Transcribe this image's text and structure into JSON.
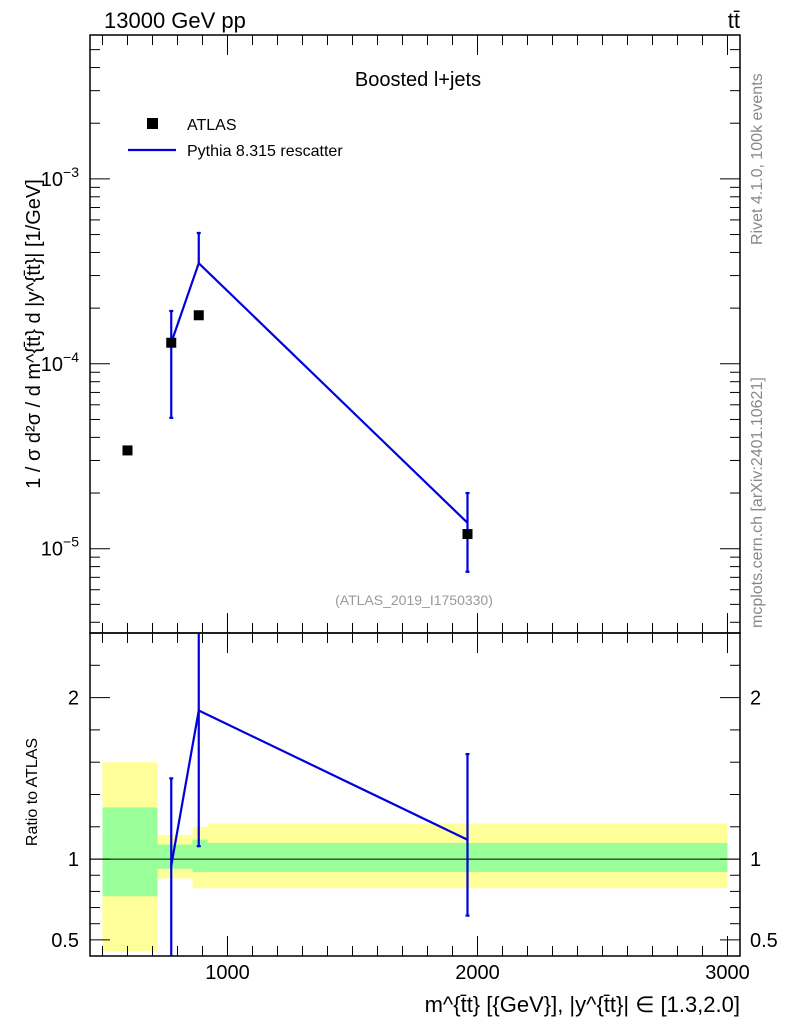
{
  "header": {
    "left": "13000 GeV pp",
    "right": "tt̄"
  },
  "side": {
    "top": "Rivet 4.1.0,  100k events",
    "bottom": "mcplots.cern.ch [arXiv:2401.10621]"
  },
  "colors": {
    "data": "#000000",
    "mc": "#0000dd",
    "band_inner": "#99ff99",
    "band_outer": "#ffff99"
  },
  "chart_data": [
    {
      "type": "scatter",
      "title": "Boosted l+jets",
      "analysis": "(ATLAS_2019_I1750330)",
      "ylabel": "1 / σ d²σ / d m^{t̄t} d |y^{t̄t}| [1/GeV]",
      "yscale": "log",
      "xlim": [
        450,
        3050
      ],
      "ylim": [
        3.5e-06,
        0.006
      ],
      "yticks": [
        {
          "value": 0.001,
          "mant": "10",
          "exp": "−3"
        },
        {
          "value": 0.0001,
          "mant": "10",
          "exp": "−4"
        },
        {
          "value": 1e-05,
          "mant": "10",
          "exp": "−5"
        }
      ],
      "legend": [
        "ATLAS",
        "Pythia 8.315 rescatter"
      ],
      "series": [
        {
          "name": "ATLAS",
          "kind": "points",
          "x": [
            600,
            775,
            885,
            1960
          ],
          "y": [
            3.4e-05,
            0.00013,
            0.000183,
            1.2e-05
          ]
        },
        {
          "name": "Pythia 8.315 rescatter",
          "kind": "line",
          "x": [
            775,
            885,
            1960
          ],
          "y": [
            0.00013,
            0.00035,
            1.38e-05
          ],
          "yerr_low": [
            5.1e-05,
            null,
            7.5e-06
          ],
          "yerr_high": [
            0.000193,
            0.00051,
            2e-05
          ]
        }
      ]
    },
    {
      "type": "line",
      "ylabel": "Ratio to ATLAS",
      "xlabel": "m^{t̄t} [{GeV}], |y^{t̄t}| ∈ [1.3,2.0]",
      "xlim": [
        450,
        3050
      ],
      "ylim": [
        0.4,
        2.4
      ],
      "xticks": [
        1000,
        2000,
        3000
      ],
      "yticks": [
        0.5,
        1,
        2
      ],
      "uncertainty_bands": [
        {
          "x_low": 500,
          "x_high": 720,
          "inner": [
            0.77,
            1.32
          ],
          "outer": [
            0.43,
            1.6
          ]
        },
        {
          "x_low": 720,
          "x_high": 860,
          "inner": [
            0.94,
            1.09
          ],
          "outer": [
            0.88,
            1.15
          ]
        },
        {
          "x_low": 860,
          "x_high": 920,
          "inner": [
            0.92,
            1.12
          ],
          "outer": [
            0.82,
            1.2
          ]
        },
        {
          "x_low": 920,
          "x_high": 3000,
          "inner": [
            0.92,
            1.1
          ],
          "outer": [
            0.82,
            1.22
          ]
        }
      ],
      "series": [
        {
          "name": "Pythia 8.315 rescatter / ATLAS",
          "x": [
            775,
            885,
            1960
          ],
          "y": [
            0.96,
            1.92,
            1.12
          ],
          "yerr_low": [
            0.38,
            1.08,
            0.65
          ],
          "yerr_high": [
            1.5,
            2.4,
            1.65
          ]
        }
      ]
    }
  ]
}
